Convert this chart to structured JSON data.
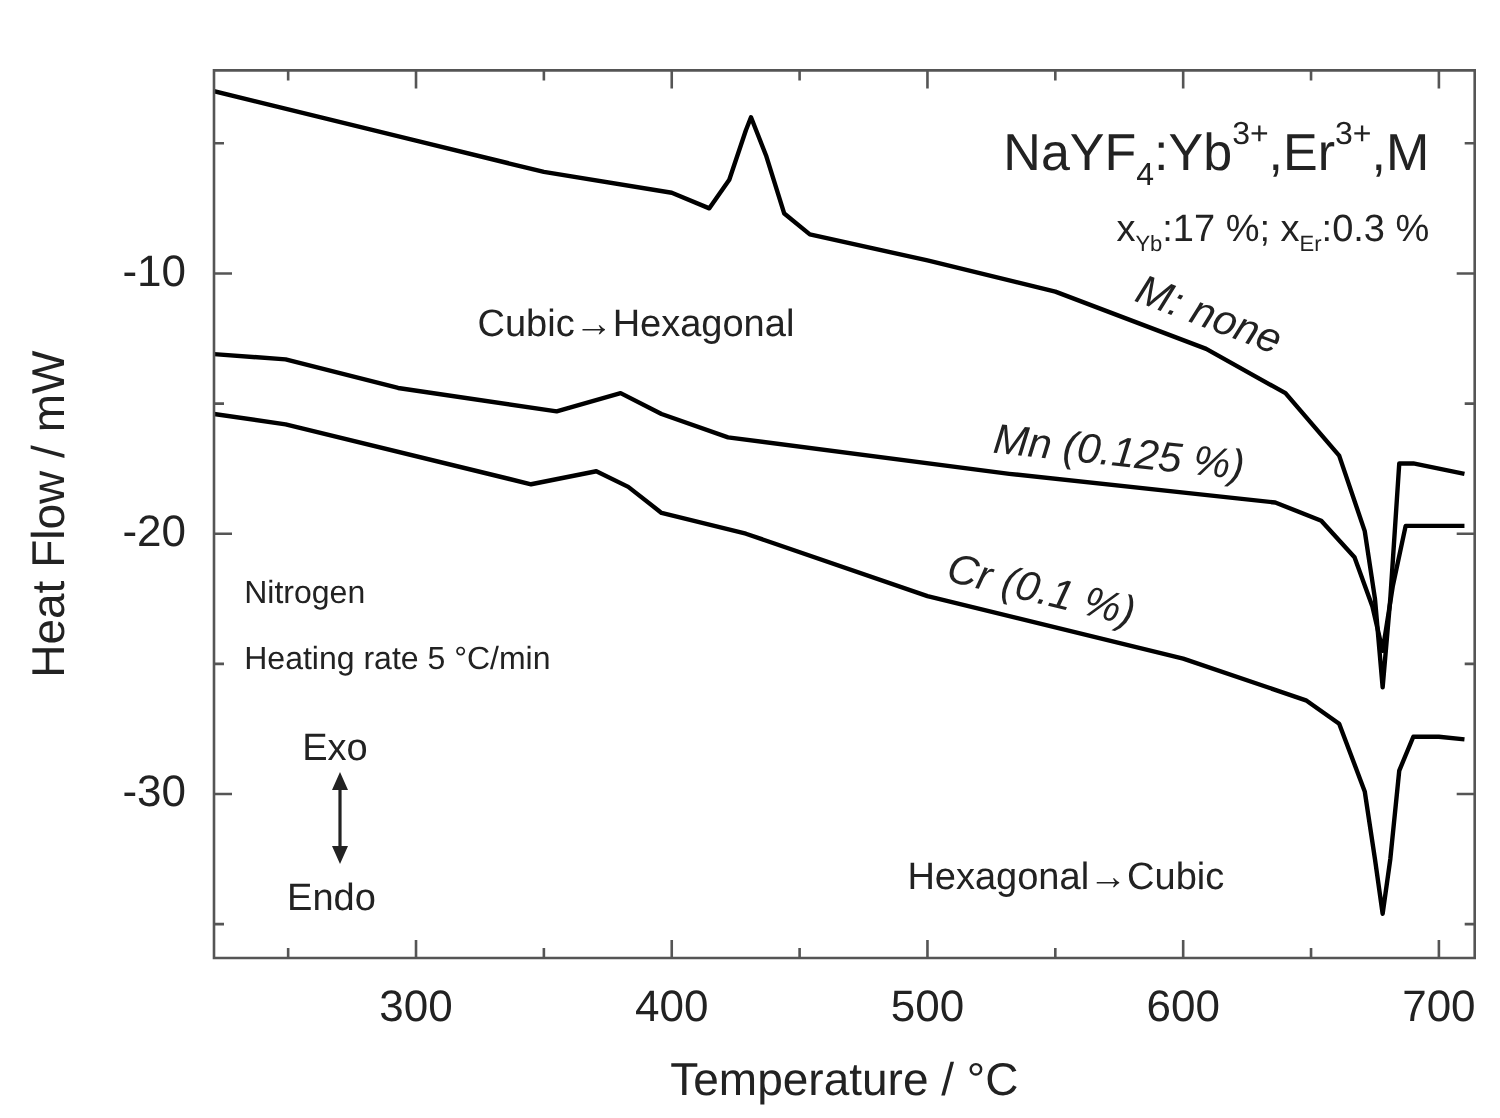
{
  "chart_data": {
    "type": "line",
    "xlabel": "Temperature / °C",
    "ylabel": "Heat Flow / mW",
    "xlim": [
      221,
      714
    ],
    "ylim": [
      -36.3,
      -2.2
    ],
    "xticks": [
      {
        "value": 250,
        "label": null
      },
      300,
      {
        "value": 350,
        "label": null
      },
      400,
      {
        "value": 450,
        "label": null
      },
      500,
      {
        "value": 550,
        "label": null
      },
      600,
      {
        "value": 650,
        "label": null
      },
      700
    ],
    "yticks": [
      {
        "value": -35,
        "label": null
      },
      -30,
      {
        "value": -25,
        "label": null
      },
      -20,
      {
        "value": -15,
        "label": null
      },
      -10,
      {
        "value": -5,
        "label": null
      }
    ],
    "marker": "none",
    "series": [
      {
        "name": "M: none",
        "color": "#000000",
        "x": [
          221,
          300,
          350,
          400,
          414.7,
          422.5,
          429,
          431,
          437,
          444,
          454,
          500,
          550,
          609,
          640,
          661,
          671,
          675,
          678,
          681,
          684.5,
          690,
          700,
          710
        ],
        "values": [
          -3.0,
          -4.9,
          -6.1,
          -6.9,
          -7.5,
          -6.4,
          -4.5,
          -4.0,
          -5.5,
          -7.7,
          -8.5,
          -9.5,
          -10.7,
          -12.9,
          -14.6,
          -17.0,
          -19.9,
          -22.5,
          -25.9,
          -22.5,
          -17.3,
          -17.3,
          -17.5,
          -17.7
        ]
      },
      {
        "name": "Mn (0.125 %)",
        "color": "#000000",
        "x": [
          221,
          249,
          293,
          355,
          380,
          396,
          422,
          532,
          636,
          654,
          667,
          674,
          678,
          682,
          687,
          700,
          710
        ],
        "values": [
          -13.1,
          -13.3,
          -14.4,
          -15.3,
          -14.6,
          -15.4,
          -16.3,
          -17.7,
          -18.8,
          -19.5,
          -20.9,
          -22.8,
          -24.5,
          -22.0,
          -19.7,
          -19.7,
          -19.7
        ]
      },
      {
        "name": "Cr (0.1 %)",
        "color": "#000000",
        "x": [
          221,
          249,
          345,
          370.5,
          383,
          396,
          429,
          500,
          600,
          648,
          661,
          671,
          675,
          678,
          681,
          684.5,
          690,
          700,
          710
        ],
        "values": [
          -15.4,
          -15.8,
          -18.1,
          -17.6,
          -18.2,
          -19.2,
          -20.0,
          -22.4,
          -24.8,
          -26.4,
          -27.3,
          -29.9,
          -32.5,
          -34.6,
          -32.5,
          -29.1,
          -27.8,
          -27.8,
          -27.9
        ]
      }
    ],
    "annotations": [
      "NaYF$_{4}$:Yb$^{3+}$,Er$^{3+}$,M",
      "x$_{Yb}$:17 %; x$_{Er}$:0.3 %",
      "Cubic→Hexagonal",
      "Hexagonal→Cubic",
      "Nitrogen",
      "Heating rate 5 °C/min",
      "Exo",
      "Endo"
    ]
  }
}
